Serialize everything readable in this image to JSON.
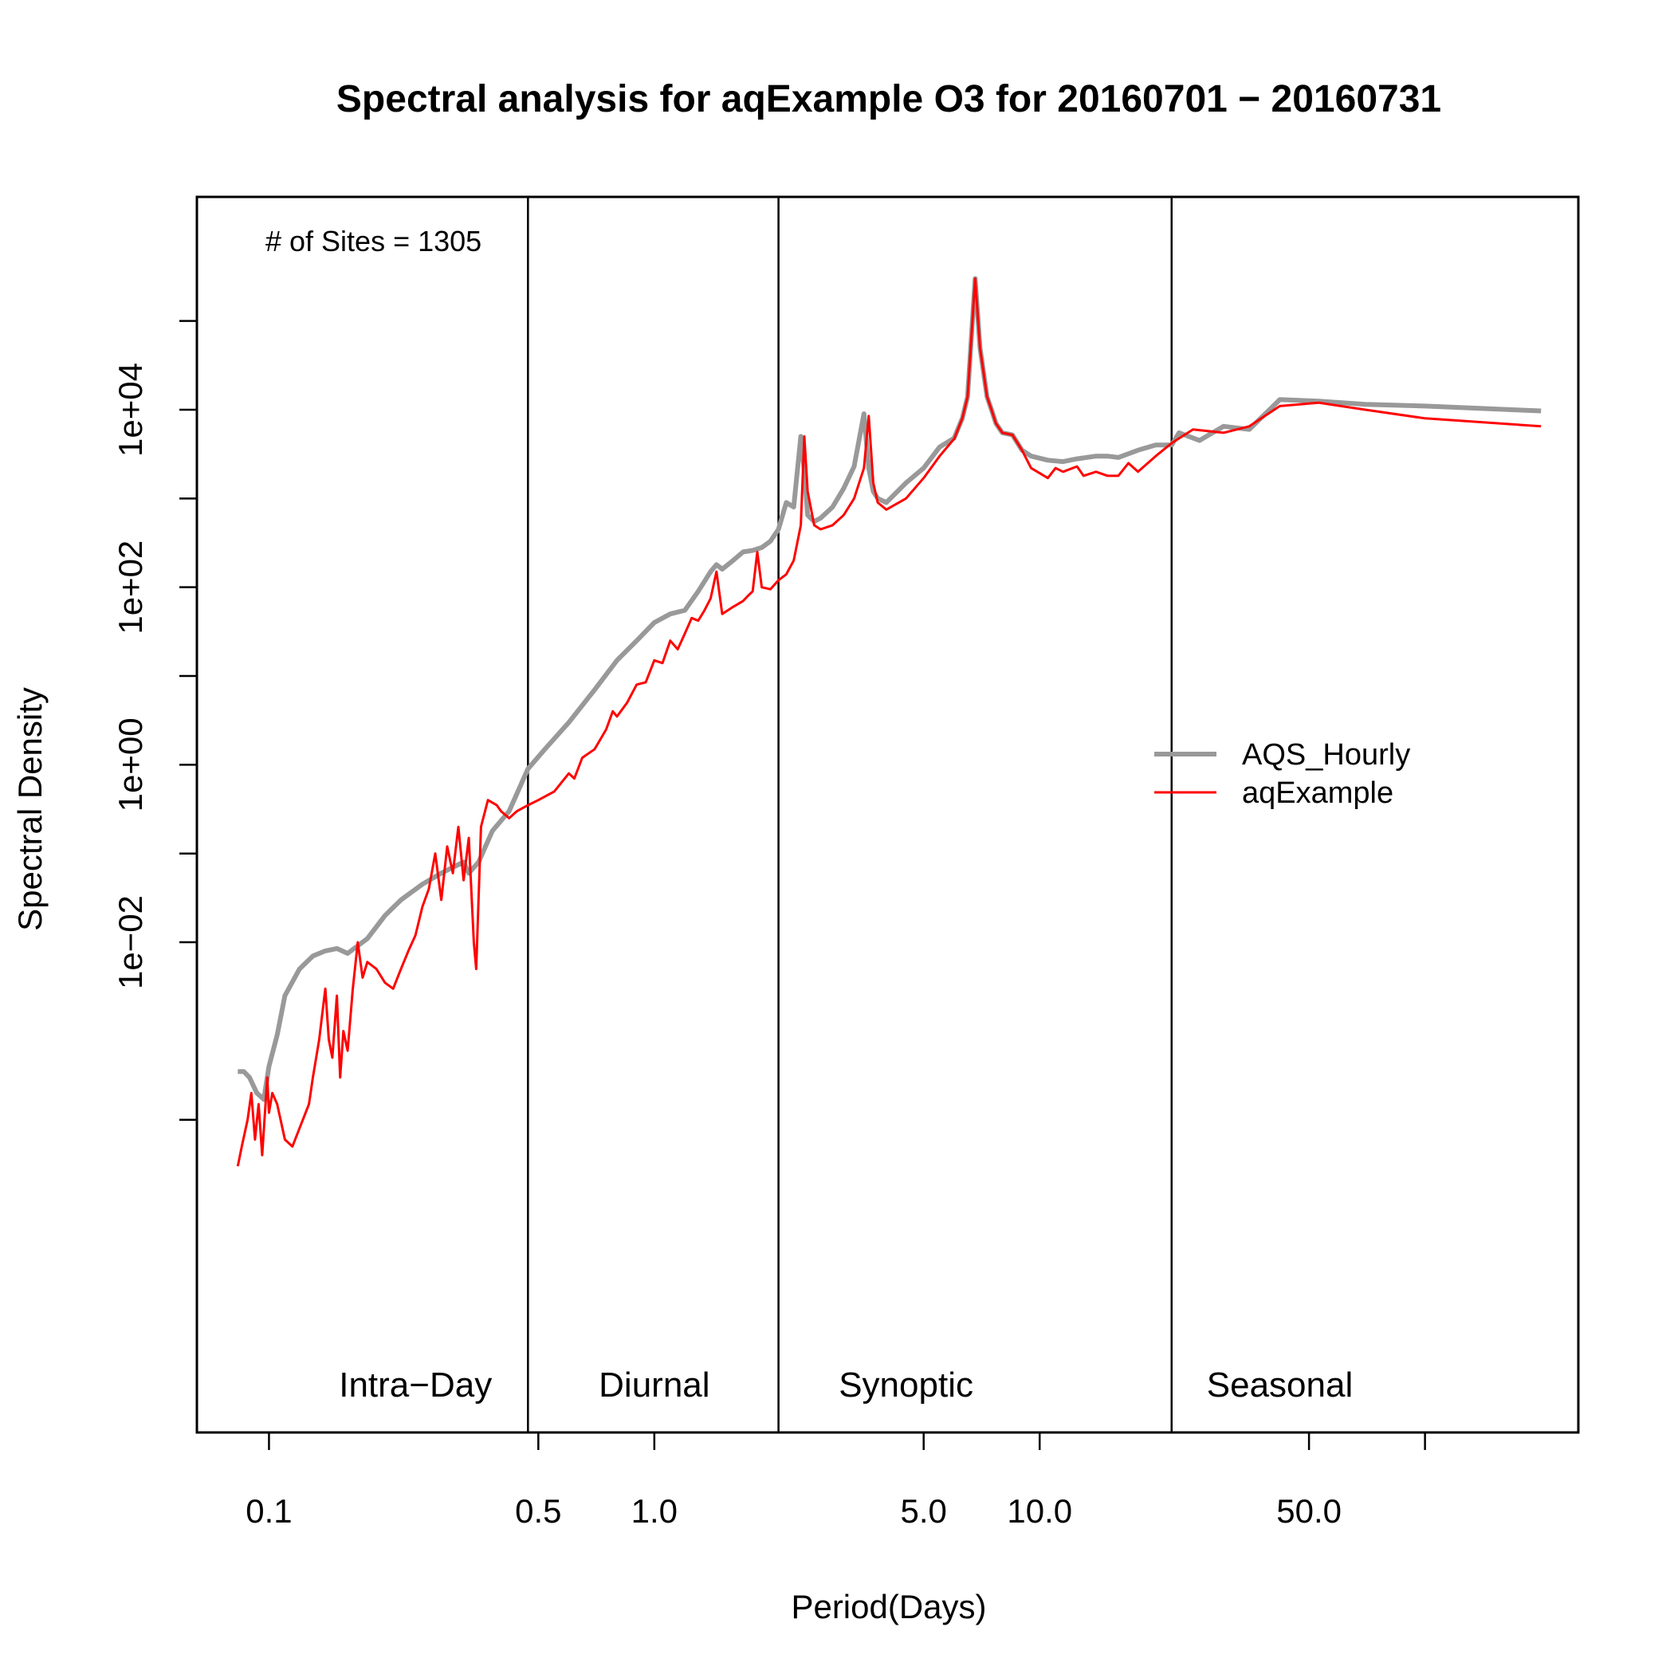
{
  "chart_data": {
    "type": "line",
    "title": "Spectral analysis for aqExample O3 for 20160701 − 20160731",
    "xlabel": "Period(Days)",
    "ylabel": "Spectral Density",
    "x_scale": "log",
    "y_scale": "log",
    "xlim": [
      0.065,
      250
    ],
    "ylim": [
      3e-08,
      2500000
    ],
    "x_ticks": [
      {
        "value": 0.1,
        "label": "0.1"
      },
      {
        "value": 0.5,
        "label": "0.5"
      },
      {
        "value": 1.0,
        "label": "1.0"
      },
      {
        "value": 5.0,
        "label": "5.0"
      },
      {
        "value": 10.0,
        "label": "10.0"
      },
      {
        "value": 50.0,
        "label": "50.0"
      },
      {
        "value": 100.0,
        "label": ""
      }
    ],
    "y_ticks": [
      {
        "value": 0.0001,
        "label": ""
      },
      {
        "value": 0.01,
        "label": "1e−02"
      },
      {
        "value": 0.1,
        "label": ""
      },
      {
        "value": 1,
        "label": "1e+00"
      },
      {
        "value": 10,
        "label": ""
      },
      {
        "value": 100,
        "label": "1e+02"
      },
      {
        "value": 1000,
        "label": ""
      },
      {
        "value": 10000,
        "label": "1e+04"
      },
      {
        "value": 100000,
        "label": ""
      }
    ],
    "dividers": [
      0.47,
      2.1,
      22
    ],
    "regions": [
      {
        "label": "Intra−Day",
        "x": 0.24
      },
      {
        "label": "Diurnal",
        "x": 1.0
      },
      {
        "label": "Synoptic",
        "x": 4.5
      },
      {
        "label": "Seasonal",
        "x": 42
      }
    ],
    "annotation": "# of Sites = 1305",
    "legend": {
      "position": "right"
    },
    "series": [
      {
        "name": "AQS_Hourly",
        "color": "#999999",
        "x": [
          0.083,
          0.086,
          0.089,
          0.093,
          0.097,
          0.1,
          0.105,
          0.11,
          0.12,
          0.13,
          0.14,
          0.15,
          0.16,
          0.18,
          0.2,
          0.22,
          0.25,
          0.28,
          0.3,
          0.32,
          0.33,
          0.35,
          0.38,
          0.42,
          0.47,
          0.52,
          0.6,
          0.7,
          0.8,
          0.9,
          1.0,
          1.1,
          1.2,
          1.3,
          1.4,
          1.45,
          1.5,
          1.6,
          1.7,
          1.8,
          1.9,
          2.0,
          2.1,
          2.2,
          2.3,
          2.4,
          2.45,
          2.5,
          2.6,
          2.7,
          2.9,
          3.1,
          3.3,
          3.5,
          3.6,
          3.7,
          3.8,
          4.0,
          4.5,
          5.0,
          5.5,
          6.0,
          6.3,
          6.5,
          6.8,
          7.0,
          7.3,
          7.5,
          7.7,
          8.0,
          8.5,
          9.0,
          9.5,
          10.5,
          11.5,
          12.5,
          14,
          15,
          16,
          18,
          20,
          22,
          23,
          26,
          30,
          35,
          42,
          53,
          70,
          100,
          200
        ],
        "values": [
          0.00035,
          0.00035,
          0.0003,
          0.0002,
          0.00017,
          0.0004,
          0.0009,
          0.0025,
          0.005,
          0.007,
          0.008,
          0.0085,
          0.0075,
          0.011,
          0.02,
          0.03,
          0.045,
          0.06,
          0.07,
          0.08,
          0.06,
          0.08,
          0.18,
          0.3,
          0.9,
          1.5,
          3.0,
          7.0,
          15,
          25,
          40,
          50,
          55,
          90,
          150,
          180,
          160,
          200,
          250,
          260,
          280,
          330,
          450,
          900,
          800,
          5000,
          2000,
          650,
          550,
          600,
          800,
          1300,
          2300,
          9000,
          2200,
          1200,
          1000,
          900,
          1500,
          2200,
          3800,
          4800,
          8000,
          14000,
          300000,
          50000,
          14000,
          10000,
          7000,
          5500,
          5200,
          3500,
          3000,
          2700,
          2600,
          2800,
          3000,
          3000,
          2900,
          3500,
          4000,
          4000,
          5500,
          4500,
          6500,
          6000,
          13000,
          12500,
          11500,
          11000,
          9700
        ]
      },
      {
        "name": "aqExample",
        "color": "#ff0000",
        "x": [
          0.083,
          0.085,
          0.088,
          0.09,
          0.092,
          0.094,
          0.096,
          0.099,
          0.1,
          0.102,
          0.105,
          0.11,
          0.115,
          0.12,
          0.127,
          0.13,
          0.135,
          0.14,
          0.143,
          0.146,
          0.15,
          0.153,
          0.156,
          0.16,
          0.165,
          0.17,
          0.175,
          0.18,
          0.19,
          0.2,
          0.21,
          0.22,
          0.23,
          0.24,
          0.25,
          0.26,
          0.27,
          0.28,
          0.29,
          0.3,
          0.31,
          0.32,
          0.33,
          0.34,
          0.345,
          0.355,
          0.37,
          0.39,
          0.4,
          0.42,
          0.44,
          0.47,
          0.5,
          0.55,
          0.6,
          0.62,
          0.65,
          0.7,
          0.75,
          0.78,
          0.8,
          0.85,
          0.9,
          0.95,
          1.0,
          1.05,
          1.1,
          1.15,
          1.2,
          1.25,
          1.3,
          1.35,
          1.4,
          1.45,
          1.5,
          1.6,
          1.7,
          1.75,
          1.8,
          1.85,
          1.9,
          2.0,
          2.1,
          2.2,
          2.3,
          2.4,
          2.45,
          2.5,
          2.6,
          2.7,
          2.9,
          3.1,
          3.3,
          3.5,
          3.6,
          3.7,
          3.8,
          4.0,
          4.5,
          5.0,
          5.5,
          6.0,
          6.3,
          6.5,
          6.8,
          7.0,
          7.3,
          7.5,
          7.7,
          8.0,
          8.5,
          9.0,
          9.5,
          10.5,
          11.0,
          11.5,
          12.5,
          13,
          14,
          15,
          16,
          17,
          18,
          20,
          22,
          25,
          30,
          35,
          42,
          53,
          70,
          100,
          200
        ],
        "values": [
          3e-05,
          5e-05,
          0.0001,
          0.0002,
          6e-05,
          0.00015,
          4e-05,
          0.0003,
          0.00012,
          0.0002,
          0.00015,
          6e-05,
          5e-05,
          8e-05,
          0.00015,
          0.0003,
          0.0008,
          0.003,
          0.0008,
          0.0005,
          0.0025,
          0.0003,
          0.001,
          0.0006,
          0.003,
          0.01,
          0.004,
          0.006,
          0.005,
          0.0035,
          0.003,
          0.005,
          0.008,
          0.012,
          0.025,
          0.04,
          0.1,
          0.03,
          0.12,
          0.06,
          0.2,
          0.05,
          0.15,
          0.01,
          0.005,
          0.2,
          0.4,
          0.35,
          0.3,
          0.25,
          0.3,
          0.35,
          0.4,
          0.5,
          0.8,
          0.7,
          1.2,
          1.5,
          2.5,
          4.0,
          3.5,
          5.0,
          8.0,
          8.5,
          15,
          14,
          25,
          20,
          30,
          45,
          42,
          55,
          75,
          150,
          50,
          60,
          70,
          80,
          90,
          250,
          100,
          95,
          120,
          140,
          200,
          500,
          5000,
          1200,
          500,
          450,
          500,
          650,
          1000,
          2200,
          8500,
          1500,
          900,
          750,
          1000,
          1700,
          3000,
          4700,
          8000,
          14000,
          300000,
          50000,
          14000,
          10000,
          7000,
          5500,
          5200,
          3500,
          2200,
          1700,
          2200,
          2000,
          2300,
          1800,
          2000,
          1800,
          1800,
          2500,
          2000,
          3000,
          4200,
          6000,
          5500,
          6500,
          11000,
          12000,
          10000,
          8000,
          6500
        ]
      }
    ]
  }
}
